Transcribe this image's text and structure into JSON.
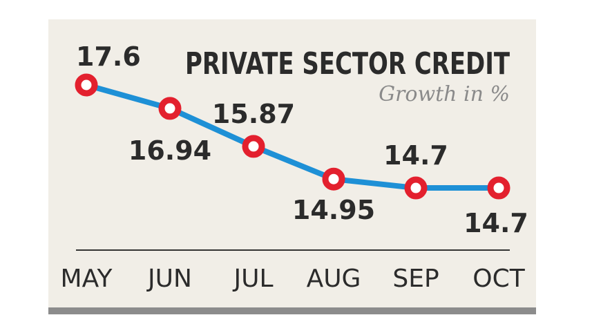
{
  "chart_data": {
    "type": "line",
    "title": "PRIVATE SECTOR CREDIT",
    "subtitle": "Growth in %",
    "categories": [
      "MAY",
      "JUN",
      "JUL",
      "AUG",
      "SEP",
      "OCT"
    ],
    "values": [
      17.6,
      16.94,
      15.87,
      14.95,
      14.7,
      14.7
    ],
    "data_labels": [
      "17.6",
      "16.94",
      "15.87",
      "14.95",
      "14.7",
      "14.7"
    ],
    "xlabel": "",
    "ylabel": "",
    "grid": false,
    "colors": {
      "line": "#1e90d6",
      "marker": "#e3202e",
      "background": "#f1eee7",
      "text": "#2b2b2b"
    }
  }
}
